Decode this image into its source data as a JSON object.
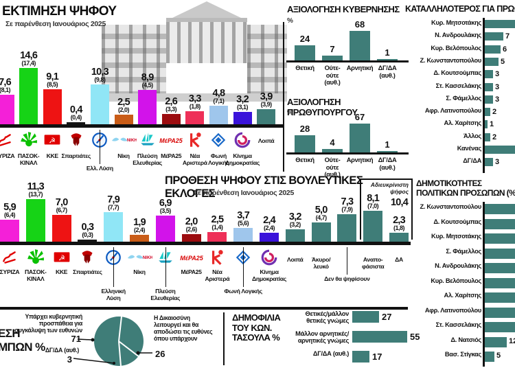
{
  "colors": {
    "teal": "#3f7d78",
    "axis": "#111111"
  },
  "chart_data": [
    {
      "id": "vote-estimation",
      "type": "bar",
      "title": "ΕΚΤΙΜΗΣΗ ΨΗΦΟΥ",
      "subtitle": "Σε παρένθεση Ιανουάριος 2025",
      "items": [
        {
          "party": "ΣΥΡΙΖΑ",
          "label_lines": [
            "ΣΥΡΙΖΑ"
          ],
          "value": "7,6",
          "prev": "8,1",
          "color": "#f420d8",
          "logo": "syriza",
          "level": 1
        },
        {
          "party": "ΠΑΣΟΚ-ΚΙΝΑΛ",
          "label_lines": [
            "ΠΑΣΟΚ-",
            "ΚΙΝΑΛ"
          ],
          "value": "14,6",
          "prev": "17,4",
          "color": "#16d316",
          "logo": "pasok",
          "level": 1
        },
        {
          "party": "ΚΚΕ",
          "label_lines": [
            "ΚΚΕ"
          ],
          "value": "9,1",
          "prev": "8,5",
          "color": "#ee1313",
          "logo": "kke",
          "level": 1
        },
        {
          "party": "Σπαρτιάτες",
          "label_lines": [
            "Σπαρτιάτες"
          ],
          "value": "0,4",
          "prev": "0,4",
          "color": "#151515",
          "logo": "spartiates",
          "level": 1
        },
        {
          "party": "Ελλ. Λύση",
          "label_lines": [
            "Ελλ. Λύση"
          ],
          "value": "10,3",
          "prev": "9,8",
          "color": "#90e6f6",
          "logo": "lysi",
          "level": 3
        },
        {
          "party": "Νίκη",
          "label_lines": [
            "Νίκη"
          ],
          "value": "2,5",
          "prev": "2,0",
          "color": "#c95c17",
          "logo": "niki",
          "level": 1
        },
        {
          "party": "Πλεύση Ελευθερίας",
          "label_lines": [
            "Πλεύση",
            "Ελευθερίας"
          ],
          "value": "8,9",
          "prev": "4,5",
          "color": "#d213ea",
          "logo": "plefsi",
          "level": 1
        },
        {
          "party": "ΜέΡΑ25",
          "label_lines": [
            "ΜέΡΑ25"
          ],
          "value": "2,6",
          "prev": "3,3",
          "color": "#9c0d10",
          "logo": "mera25",
          "level": 1
        },
        {
          "party": "Νέα Αριστερά",
          "label_lines": [
            "Νέα",
            "Αριστερά"
          ],
          "value": "3,3",
          "prev": "1,8",
          "color": "#ee3058",
          "logo": "nearistera",
          "level": 1
        },
        {
          "party": "Φωνή Λογικής",
          "label_lines": [
            "Φωνή",
            "Λογικής"
          ],
          "value": "4,8",
          "prev": "7,1",
          "color": "#9fc6ec",
          "logo": "foni",
          "level": 1
        },
        {
          "party": "Κίνημα Δημοκρατίας",
          "label_lines": [
            "Κίνημα",
            "Δημοκρατίας"
          ],
          "value": "3,2",
          "prev": "3,1",
          "color": "#3a13da",
          "logo": "kinima",
          "level": 1
        },
        {
          "party": "Λοιπά",
          "label_lines": [
            "Λοιπά"
          ],
          "value": "3,9",
          "prev": "3,9",
          "color": "#3f7d78",
          "logo": "none",
          "level": 0
        }
      ]
    },
    {
      "id": "vote-intention",
      "type": "bar",
      "title": "ΠΡΟΘΕΣΗ ΨΗΦΟΥ ΣΤΙΣ ΒΟΥΛΕΥΤΙΚΕΣ ΕΚΛΟΓΕΣ",
      "subtitle": "Σε παρένθεση Ιανουάριος 2025",
      "bracket": {
        "label_lines": [
          "Αδιευκρίνιστη",
          "ψήφος"
        ],
        "value": "10,4"
      },
      "items": [
        {
          "party": "ΣΥΡΙΖΑ",
          "label_lines": [
            "ΣΥΡΙΖΑ"
          ],
          "value": "5,9",
          "prev": "6,4",
          "color": "#f420d8",
          "logo": "syriza",
          "level": 1
        },
        {
          "party": "ΠΑΣΟΚ-ΚΙΝΑΛ",
          "label_lines": [
            "ΠΑΣΟΚ-",
            "ΚΙΝΑΛ"
          ],
          "value": "11,3",
          "prev": "13,7",
          "color": "#16d316",
          "logo": "pasok",
          "level": 1
        },
        {
          "party": "ΚΚΕ",
          "label_lines": [
            "ΚΚΕ"
          ],
          "value": "7,0",
          "prev": "6,7",
          "color": "#ee1313",
          "logo": "kke",
          "level": 1
        },
        {
          "party": "Σπαρτιάτες",
          "label_lines": [
            "Σπαρτιάτες"
          ],
          "value": "0,3",
          "prev": "0,3",
          "color": "#151515",
          "logo": "spartiates",
          "level": 1
        },
        {
          "party": "Ελληνική Λύση",
          "label_lines": [
            "Ελληνική",
            "Λύση"
          ],
          "value": "7,9",
          "prev": "7,7",
          "color": "#90e6f6",
          "logo": "lysi",
          "level": 3
        },
        {
          "party": "Νίκη",
          "label_lines": [
            "Νίκη"
          ],
          "value": "1,9",
          "prev": "2,4",
          "color": "#c95c17",
          "logo": "niki",
          "level": 1
        },
        {
          "party": "Πλεύση Ελευθερίας",
          "label_lines": [
            "Πλεύση Ελευθερίας"
          ],
          "value": "6,9",
          "prev": "3,5",
          "color": "#d213ea",
          "logo": "plefsi",
          "level": 3
        },
        {
          "party": "ΜέΡΑ25",
          "label_lines": [
            "ΜέΡΑ25"
          ],
          "value": "2,0",
          "prev": "2,6",
          "color": "#9c0d10",
          "logo": "mera25",
          "level": 1
        },
        {
          "party": "Νέα Αριστερά",
          "label_lines": [
            "Νέα",
            "Αριστερά"
          ],
          "value": "2,5",
          "prev": "1,4",
          "color": "#ee3058",
          "logo": "nearistera",
          "level": 1
        },
        {
          "party": "Φωνή Λογικής",
          "label_lines": [
            "Φωνή Λογικής"
          ],
          "value": "3,7",
          "prev": "5,6",
          "color": "#9fc6ec",
          "logo": "foni",
          "level": 3
        },
        {
          "party": "Κίνημα Δημοκρατίας",
          "label_lines": [
            "Κίνημα",
            "Δημοκρατίας"
          ],
          "value": "2,4",
          "prev": "2,4",
          "color": "#3a13da",
          "logo": "kinima",
          "level": 1
        },
        {
          "party": "Λοιπά",
          "label_lines": [
            "Λοιπά"
          ],
          "value": "3,2",
          "prev": "3,2",
          "color": "#3f7d78",
          "logo": "none",
          "level": 0
        },
        {
          "party": "Άκυρο/λευκό",
          "label_lines": [
            "Άκυρο/",
            "λευκό"
          ],
          "value": "5,0",
          "prev": "4,7",
          "color": "#3f7d78",
          "logo": "none",
          "level": 0
        },
        {
          "party": "Δεν θα ψηφίσουν",
          "label_lines": [
            "Δεν θα ψηφίσουν"
          ],
          "value": "7,3",
          "prev": "7,9",
          "color": "#3f7d78",
          "logo": "none",
          "level": 2
        },
        {
          "party": "Αναποφάσιστα",
          "label_lines": [
            "Αναπο-",
            "φάσιστα"
          ],
          "value": "8,1",
          "prev": "7,0",
          "color": "#3f7d78",
          "logo": "none",
          "level": 0
        },
        {
          "party": "ΔΑ",
          "label_lines": [
            "ΔΑ"
          ],
          "value": "2,3",
          "prev": "1,8",
          "color": "#3f7d78",
          "logo": "none",
          "level": 0
        }
      ]
    },
    {
      "id": "gov-evaluation",
      "type": "bar",
      "title": "ΑΞΙΟΛΟΓΗΣΗ ΚΥΒΕΡΝΗΣΗΣ",
      "unit": "%",
      "categories_lines": [
        [
          "Θετική"
        ],
        [
          "Ούτε-",
          "ούτε",
          "(αυθ.)"
        ],
        [
          "Αρνητική"
        ],
        [
          "ΔΓ/ΔΑ",
          "(αυθ.)"
        ]
      ],
      "values": [
        24,
        7,
        68,
        1
      ]
    },
    {
      "id": "pm-evaluation",
      "type": "bar",
      "title": "ΑΞΙΟΛΟΓΗΣΗ ΠΡΩΘΥΠΟΥΡΓΟΥ",
      "unit": "%",
      "categories_lines": [
        [
          "Θετική"
        ],
        [
          "Ούτε-",
          "ούτε",
          "(αυθ.)"
        ],
        [
          "Αρνητική"
        ],
        [
          "ΔΓ/ΔΑ",
          "(αυθ.)"
        ]
      ],
      "values": [
        28,
        4,
        67,
        1
      ]
    },
    {
      "id": "best-pm",
      "type": "bar",
      "title": "ΚΑΤΑΛΛΗΛΟΤΕΡΟΣ ΓΙΑ ΠΡΩΘΥΠ",
      "rows": [
        {
          "label": "Κυρ. Μητσοτάκης",
          "value": null,
          "cut": true
        },
        {
          "label": "Ν. Ανδρουλάκης",
          "value": 7
        },
        {
          "label": "Κυρ. Βελόπουλος",
          "value": 6
        },
        {
          "label": "Ζ. Κωνσταντοπούλου",
          "value": 5
        },
        {
          "label": "Δ. Κουτσούμπας",
          "value": 3
        },
        {
          "label": "Στ. Κασσελάκης",
          "value": 3
        },
        {
          "label": "Σ. Φάμελλος",
          "value": 3
        },
        {
          "label": "Αφρ. Λατινοπούλου",
          "value": 2
        },
        {
          "label": "Αλ. Χαρίτσης",
          "value": 1
        },
        {
          "label": "Άλλος",
          "value": 2
        },
        {
          "label": "Κανένας",
          "value": null,
          "cut": true
        },
        {
          "label": "ΔΓ/ΔΑ",
          "value": 3
        }
      ]
    },
    {
      "id": "politician-popularity",
      "type": "bar",
      "title_lines": [
        "ΔΗΜΟΤΙΚΟΤΗΤΕΣ",
        "ΠΟΛΙΤΙΚΩΝ ΠΡΟΣΩΠΩΝ (%)"
      ],
      "rows": [
        {
          "label": "Ζ. Κωνσταντοπούλου",
          "value": null,
          "cut": true
        },
        {
          "label": "Δ. Κουτσούμπας",
          "value": null,
          "cut": true
        },
        {
          "label": "Κυρ. Μητσοτάκης",
          "value": null,
          "cut": true
        },
        {
          "label": "Σ. Φάμελλος",
          "value": null,
          "cut": true
        },
        {
          "label": "Ν. Ανδρουλάκης",
          "value": null,
          "cut": true
        },
        {
          "label": "Κυρ. Βελόπουλος",
          "value": null,
          "cut": true
        },
        {
          "label": "Αλ. Χαρίτσης",
          "value": null,
          "cut": true
        },
        {
          "label": "Αφρ. Λατινοπούλου",
          "value": null,
          "cut": true
        },
        {
          "label": "Στ. Κασσελάκης",
          "value": null,
          "cut": true
        },
        {
          "label": "Δ. Νατσιός",
          "value": 12
        },
        {
          "label": "Βασ. Στίγκας",
          "value": 5
        }
      ]
    },
    {
      "id": "tempi-pie",
      "type": "pie",
      "title_fragment_lines": [
        "ΕΣΗ",
        "ΜΠΩΝ %"
      ],
      "slices": [
        {
          "label": "Υπάρχει κυβερνητική προσπάθεια για συγκάλυψη των ευθυνών",
          "label_lines": [
            "Υπάρχει κυβερνητική",
            "προσπάθεια για",
            "συγκάλυψη των ευθυνών"
          ],
          "value": 71
        },
        {
          "label": "Η Δικαιοσύνη λειτουργεί και θα αποδώσει τις ευθύνες όπου υπάρχουν",
          "label_lines": [
            "Η Δικαιοσύνη",
            "λειτουργεί και θα",
            "αποδώσει τις ευθύνες",
            "όπου υπάρχουν"
          ],
          "value": 26
        },
        {
          "label": "ΔΓ/ΔΑ (αυθ.)",
          "value": 3
        }
      ]
    },
    {
      "id": "tasoulas-popularity",
      "type": "bar",
      "title_lines": [
        "ΔΗΜΟΦΙΛΙΑ",
        "ΤΟΥ ΚΩΝ.",
        "ΤΑΣΟΥΛΑ %"
      ],
      "rows": [
        {
          "label_lines": [
            "Θετικές/μάλλον",
            "θετικές γνώμες"
          ],
          "value": 27
        },
        {
          "label_lines": [
            "Μάλλον αρνητικές/",
            "αρνητικές γνώμες"
          ],
          "value": 55
        },
        {
          "label_lines": [
            "ΔΓ/ΔΑ (αυθ.)"
          ],
          "value": 17
        }
      ]
    }
  ]
}
